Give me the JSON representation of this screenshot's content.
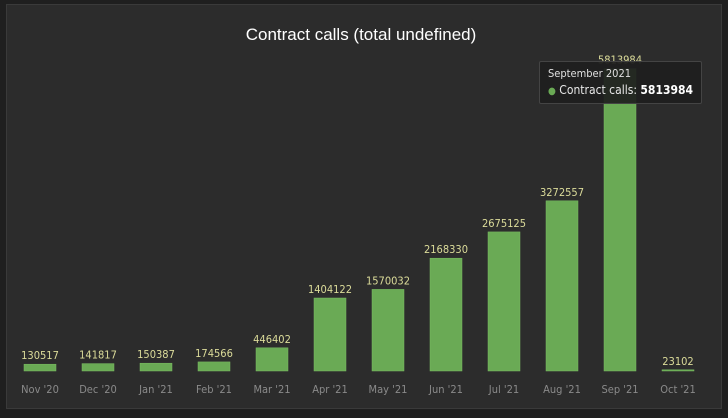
{
  "chart_data": {
    "type": "bar",
    "title": "Contract calls (total undefined)",
    "categories": [
      "Nov '20",
      "Dec '20",
      "Jan '21",
      "Feb '21",
      "Mar '21",
      "Apr '21",
      "May '21",
      "Jun '21",
      "Jul '21",
      "Aug '21",
      "Sep '21",
      "Oct '21"
    ],
    "series": [
      {
        "values": [
          130517,
          141817,
          150387,
          174566,
          446402,
          1404122,
          1570032,
          2168330,
          2675125,
          3272557,
          5813984,
          23102
        ]
      }
    ],
    "ylim": [
      0,
      6500000
    ],
    "grid": false,
    "data_labels": true,
    "colors": {
      "bar": "#6aaa55",
      "bar_stroke": "#7bbd63",
      "value_label": "#dcdc9a",
      "background": "#2c2c2c"
    }
  },
  "tooltip": {
    "header": "September 2021",
    "series_label": "Contract calls:",
    "value": "5813984"
  }
}
